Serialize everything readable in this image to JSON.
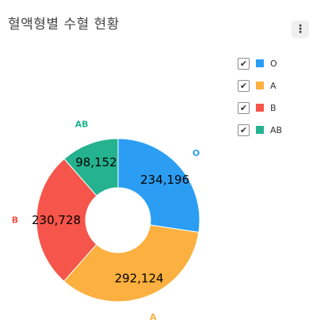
{
  "title": "혈액형별 수혈 현황",
  "menu_icon": "more-vertical-icon",
  "chart_data": {
    "type": "pie",
    "variant": "donut",
    "title": "혈액형별 수혈 현황",
    "categories": [
      "O",
      "A",
      "B",
      "AB"
    ],
    "values": [
      234196,
      292124,
      230728,
      98152
    ],
    "value_labels": [
      "234,196",
      "292,124",
      "230,728",
      "98,152"
    ],
    "colors": [
      "#2b9ef4",
      "#fbb040",
      "#f5554a",
      "#24b28f"
    ],
    "legend": {
      "position": "top-right",
      "items": [
        {
          "label": "O",
          "checked": true
        },
        {
          "label": "A",
          "checked": true
        },
        {
          "label": "B",
          "checked": true
        },
        {
          "label": "AB",
          "checked": true
        }
      ]
    }
  }
}
